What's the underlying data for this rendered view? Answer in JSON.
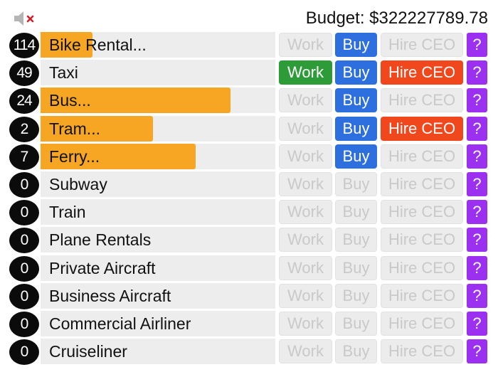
{
  "header": {
    "mute_icon": "speaker-muted-icon",
    "budget_label": "Budget: $322227789.78"
  },
  "colors": {
    "progress": "#f6a623",
    "work_active": "#2e9b39",
    "buy_active": "#2e6fe0",
    "hire_active": "#f0481c",
    "help": "#9b30f0",
    "disabled_bg": "#ececec",
    "disabled_text": "#c9c9c9"
  },
  "labels": {
    "work": "Work",
    "buy": "Buy",
    "hire": "Hire CEO",
    "help": "?"
  },
  "businesses": [
    {
      "count": "114",
      "name": "Bike Rental...",
      "progress": 0.22,
      "work": false,
      "buy": true,
      "hire": false
    },
    {
      "count": "49",
      "name": "Taxi",
      "progress": 0,
      "work": true,
      "buy": true,
      "hire": true
    },
    {
      "count": "24",
      "name": "Bus...",
      "progress": 0.81,
      "work": false,
      "buy": true,
      "hire": false
    },
    {
      "count": "2",
      "name": "Tram...",
      "progress": 0.48,
      "work": false,
      "buy": true,
      "hire": true
    },
    {
      "count": "7",
      "name": "Ferry...",
      "progress": 0.66,
      "work": false,
      "buy": true,
      "hire": false
    },
    {
      "count": "0",
      "name": "Subway",
      "progress": 0,
      "work": false,
      "buy": false,
      "hire": false
    },
    {
      "count": "0",
      "name": "Train",
      "progress": 0,
      "work": false,
      "buy": false,
      "hire": false
    },
    {
      "count": "0",
      "name": "Plane Rentals",
      "progress": 0,
      "work": false,
      "buy": false,
      "hire": false
    },
    {
      "count": "0",
      "name": "Private Aircraft",
      "progress": 0,
      "work": false,
      "buy": false,
      "hire": false
    },
    {
      "count": "0",
      "name": "Business Aircraft",
      "progress": 0,
      "work": false,
      "buy": false,
      "hire": false
    },
    {
      "count": "0",
      "name": "Commercial Airliner",
      "progress": 0,
      "work": false,
      "buy": false,
      "hire": false
    },
    {
      "count": "0",
      "name": "Cruiseliner",
      "progress": 0,
      "work": false,
      "buy": false,
      "hire": false
    }
  ]
}
